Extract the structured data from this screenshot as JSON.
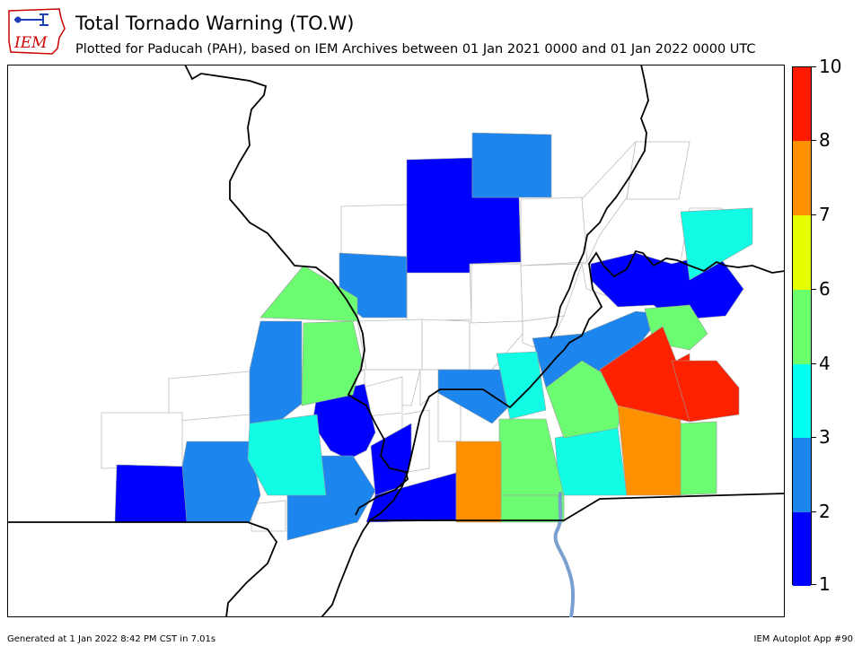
{
  "logo": {
    "text": "IEM",
    "color": "#cc0000",
    "icon": "iowa-state-outline-icon"
  },
  "title": "Total Tornado Warning (TO.W)",
  "subtitle": "Plotted for Paducah (PAH), based on IEM Archives  between 01 Jan 2021 0000 and 01 Jan 2022 0000 UTC",
  "colorbar": {
    "labels": [
      "1",
      "2",
      "3",
      "4",
      "6",
      "7",
      "8",
      "10"
    ],
    "bins": [
      {
        "from": 1,
        "to": 2,
        "color": "#0000ff"
      },
      {
        "from": 2,
        "to": 3,
        "color": "#1c86ee"
      },
      {
        "from": 3,
        "to": 4,
        "color": "#00ffee"
      },
      {
        "from": 4,
        "to": 6,
        "color": "#6bff6b"
      },
      {
        "from": 6,
        "to": 7,
        "color": "#e6ff00"
      },
      {
        "from": 7,
        "to": 8,
        "color": "#ff9000"
      },
      {
        "from": 8,
        "to": 10,
        "color": "#ff1a00"
      }
    ]
  },
  "colors": {
    "c1": "#0000ff",
    "c2": "#1c86ee",
    "c3": "#11fbe5",
    "c4": "#6cfc72",
    "c7": "#ff9000",
    "c8": "#ff2200",
    "none": "#ffffff",
    "river": "#7aa0d0"
  },
  "footer": {
    "left": "Generated at 1 Jan 2022 8:42 PM CST in 7.01s",
    "right": "IEM Autoplot App #90"
  }
}
